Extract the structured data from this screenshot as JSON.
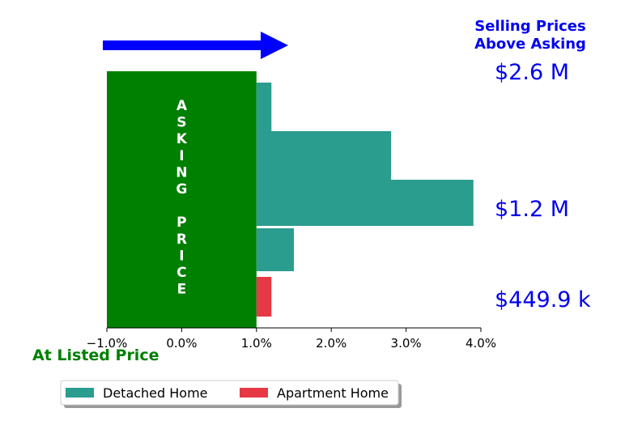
{
  "chart_data": {
    "type": "bar",
    "orientation": "horizontal",
    "x_ticks": [
      "−1.0%",
      "0.0%",
      "1.0%",
      "2.0%",
      "3.0%",
      "4.0%"
    ],
    "x_tick_values": [
      -1,
      0,
      1,
      2,
      3,
      4
    ],
    "xlim": [
      -1,
      4
    ],
    "grid": false,
    "series": [
      {
        "name": "Detached Home",
        "color": "#2a9d8f",
        "bars": [
          {
            "value": 1.2
          },
          {
            "value": 2.8
          },
          {
            "value": 3.9
          },
          {
            "value": 1.5
          }
        ]
      },
      {
        "name": "Apartment Home",
        "color": "#e63946",
        "bars": [
          {
            "value": 1.2
          }
        ]
      }
    ],
    "asking_price_band": {
      "from": -1.0,
      "to": 1.0,
      "color": "#008000",
      "text": "ASKING\n\nPRICE"
    },
    "price_labels": [
      "$2.6 M",
      "$1.2 M",
      "$449.9 k"
    ],
    "corner_title": [
      "Selling Prices",
      "Above Asking"
    ],
    "bottom_label": "At Listed Price",
    "arrow": {
      "color": "#0000ff",
      "direction": "right"
    },
    "legend": {
      "placement": "bottom-left",
      "columns": 2
    }
  }
}
